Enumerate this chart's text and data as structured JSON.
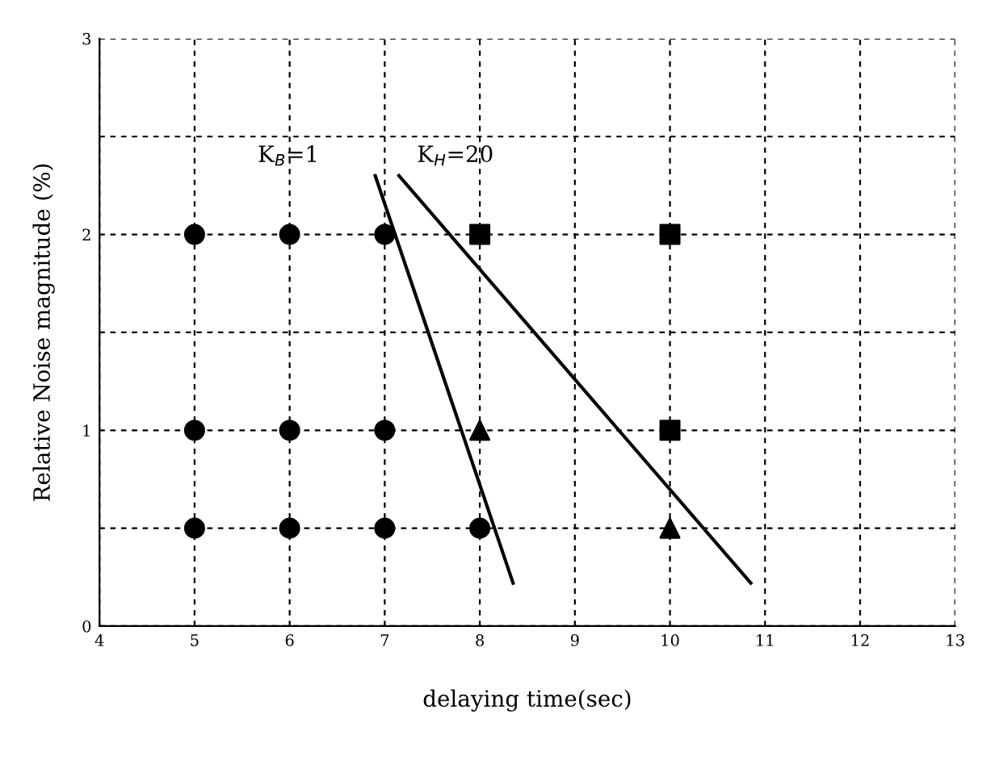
{
  "chart_data": {
    "type": "scatter",
    "xlabel": "delaying time(sec)",
    "ylabel": "Relative Noise magnitude (%)",
    "xlim": [
      4,
      13
    ],
    "xticks": [
      4,
      5,
      6,
      7,
      8,
      9,
      10,
      11,
      12,
      13
    ],
    "ylim": [
      0,
      3
    ],
    "yticks": [
      0,
      {
        "value": 0.5,
        "label": null
      },
      1,
      {
        "value": 1.5,
        "label": null
      },
      2,
      {
        "value": 2.5,
        "label": null
      },
      3
    ],
    "grid": true,
    "series": [
      {
        "marker": "circle",
        "color": "#000000",
        "x": [
          5,
          6,
          7,
          5,
          6,
          7,
          5,
          6,
          7,
          8
        ],
        "values": [
          2,
          2,
          2,
          1,
          1,
          1,
          0.5,
          0.5,
          0.5,
          0.5
        ]
      },
      {
        "marker": "square",
        "color": "#000000",
        "x": [
          8,
          10,
          10
        ],
        "values": [
          2,
          2,
          1
        ]
      },
      {
        "marker": "triangle",
        "color": "#000000",
        "x": [
          8,
          10
        ],
        "values": [
          1,
          0.5
        ]
      },
      {
        "type": "line",
        "marker": "none",
        "color": "#000000",
        "x": [
          6.9,
          8.35
        ],
        "values": [
          2.3,
          0.22
        ]
      },
      {
        "type": "line",
        "marker": "none",
        "color": "#000000",
        "x": [
          7.15,
          10.85
        ],
        "values": [
          2.3,
          0.22
        ]
      }
    ],
    "annotations": [
      "K$_{B}$=1",
      "K$_{H}$=20"
    ]
  }
}
